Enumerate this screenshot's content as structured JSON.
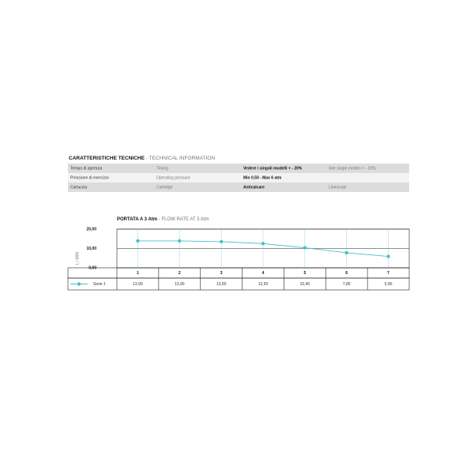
{
  "header": {
    "title": "CARATTERISTICHE TECNICHE",
    "subtitle": "- TECHNICAL INFORMATION"
  },
  "table": {
    "rows": [
      [
        "Tempo di apertura",
        "Timing",
        "Vedere i singoli modelli + - 20%",
        "See single models + - 20%"
      ],
      [
        "Pressione di esercizio",
        "Operating pressure",
        "Min 0,50 - Max 6 atm",
        ""
      ],
      [
        "Cartuccia",
        "Cartridge",
        "Anticalcare",
        "Limescale"
      ]
    ]
  },
  "chart_data": {
    "type": "line",
    "title": "PORTATA A 3 Atm",
    "subtitle": "- FLOW RATE AT 3 Atm",
    "y_label": "L / MIN",
    "categories": [
      "1",
      "2",
      "3",
      "4",
      "5",
      "6",
      "7"
    ],
    "series": [
      {
        "name": "Serie 1",
        "color": "#4cc0c8",
        "values": [
          13.9,
          13.9,
          13.5,
          12.5,
          10.4,
          7.8,
          5.9
        ],
        "value_labels": [
          "13,90",
          "13,90",
          "13,50",
          "12,50",
          "10,40",
          "7,80",
          "5,90"
        ]
      }
    ],
    "ylim": [
      0,
      20
    ],
    "yticks": [
      {
        "value": 0,
        "label": "0,00"
      },
      {
        "value": 10,
        "label": "10,00"
      },
      {
        "value": 20,
        "label": "20,00"
      }
    ],
    "grid": true
  }
}
